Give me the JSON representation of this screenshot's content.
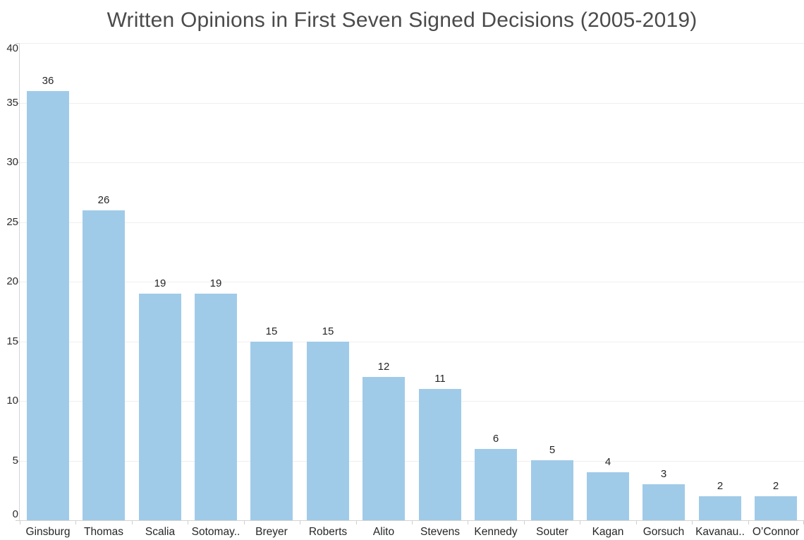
{
  "title": "Written Opinions in First Seven Signed Decisions (2005-2019)",
  "chart_data": {
    "type": "bar",
    "title": "Written Opinions in First Seven Signed Decisions (2005-2019)",
    "categories": [
      "Ginsburg",
      "Thomas",
      "Scalia",
      "Sotomay..",
      "Breyer",
      "Roberts",
      "Alito",
      "Stevens",
      "Kennedy",
      "Souter",
      "Kagan",
      "Gorsuch",
      "Kavanau..",
      "O’Connor"
    ],
    "values": [
      36,
      26,
      19,
      19,
      15,
      15,
      12,
      11,
      6,
      5,
      4,
      3,
      2,
      2
    ],
    "data_labels": [
      "36",
      "26",
      "19",
      "19",
      "15",
      "15",
      "12",
      "11",
      "6",
      "5",
      "4",
      "3",
      "2",
      "2"
    ],
    "xlabel": "",
    "ylabel": "",
    "ylim": [
      0,
      40
    ],
    "yticks": [
      0,
      5,
      10,
      15,
      20,
      25,
      30,
      35,
      40
    ],
    "grid": "horizontal",
    "legend": "none"
  },
  "colors": {
    "bar": "#a0cbe8",
    "gridline": "#efefef",
    "axis": "#d4d4d4",
    "tick_mark": "#cfcfcf",
    "label_text": "#262626",
    "axis_label_text": "#2e2e2e",
    "title_text": "#4b4b4b",
    "background": "#ffffff"
  }
}
